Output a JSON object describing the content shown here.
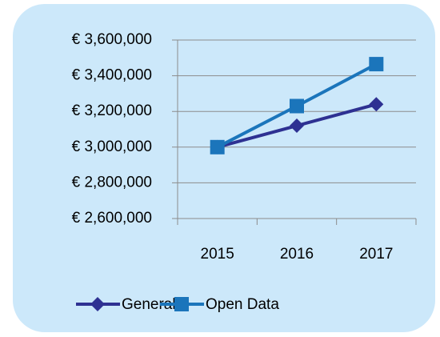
{
  "chart_data": {
    "type": "line",
    "categories": [
      "2015",
      "2016",
      "2017"
    ],
    "series": [
      {
        "name": "General",
        "color": "#2e3192",
        "marker": "diamond",
        "values": [
          3000000,
          3120000,
          3240000
        ]
      },
      {
        "name": "Open Data",
        "color": "#1b75bb",
        "marker": "square",
        "values": [
          3000000,
          3230000,
          3465000
        ]
      }
    ],
    "ylim": [
      2600000,
      3600000
    ],
    "yticks": [
      {
        "value": 2600000,
        "label": "€ 2,600,000"
      },
      {
        "value": 2800000,
        "label": "€ 2,800,000"
      },
      {
        "value": 3000000,
        "label": "€ 3,000,000"
      },
      {
        "value": 3200000,
        "label": "€ 3,200,000"
      },
      {
        "value": 3400000,
        "label": "€ 3,400,000"
      },
      {
        "value": 3600000,
        "label": "€ 3,600,000"
      }
    ],
    "grid": true,
    "legend": "bottom"
  }
}
